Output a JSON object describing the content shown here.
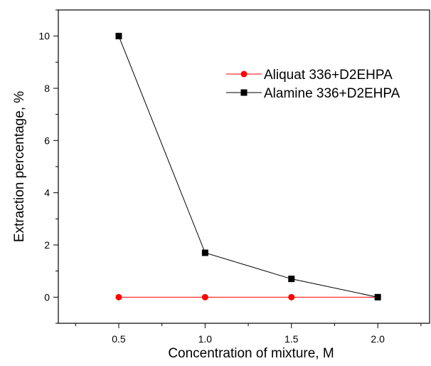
{
  "chart_data": {
    "type": "line",
    "xlabel": "Concentration of mixture, M",
    "ylabel": "Extraction percentage, %",
    "xlim": [
      0.15,
      2.3
    ],
    "ylim": [
      -1,
      11
    ],
    "x_ticks": [
      0.5,
      1.0,
      1.5,
      2.0
    ],
    "x_tick_labels": [
      "0.5",
      "1.0",
      "1.5",
      "2.0"
    ],
    "y_ticks": [
      0,
      2,
      4,
      6,
      8,
      10
    ],
    "y_tick_labels": [
      "0",
      "2",
      "4",
      "6",
      "8",
      "10"
    ],
    "grid": false,
    "legend_position": "top-right",
    "series": [
      {
        "name": "Aliquat 336+D2EHPA",
        "color": "#ff0000",
        "marker": "circle",
        "x": [
          0.5,
          1.0,
          1.5,
          2.0
        ],
        "y": [
          0,
          0,
          0,
          0
        ]
      },
      {
        "name": "Alamine 336+D2EHPA",
        "color": "#000000",
        "marker": "square",
        "x": [
          0.5,
          1.0,
          1.5,
          2.0
        ],
        "y": [
          10.0,
          1.7,
          0.7,
          0.0
        ]
      }
    ]
  }
}
